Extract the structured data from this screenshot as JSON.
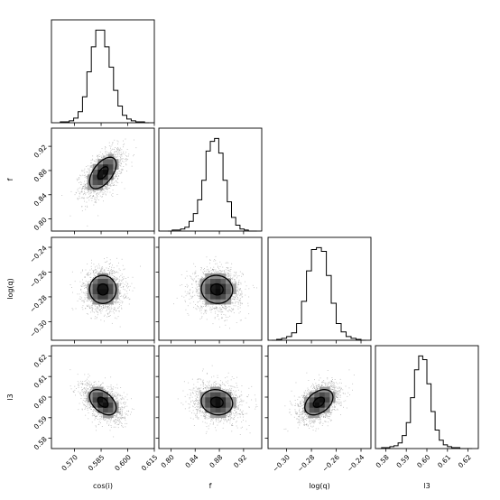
{
  "chart_data": {
    "type": "corner",
    "title": "",
    "parameters": [
      {
        "label": "cos(i)",
        "range": [
          0.557,
          0.615
        ],
        "ticks": [
          0.57,
          0.585,
          0.6,
          0.615
        ],
        "tick_labels": [
          "0.570",
          "0.585",
          "0.600",
          "0.615"
        ]
      },
      {
        "label": "f",
        "range": [
          0.78,
          0.95
        ],
        "ticks": [
          0.8,
          0.84,
          0.88,
          0.92
        ],
        "tick_labels": [
          "0.80",
          "0.84",
          "0.88",
          "0.92"
        ]
      },
      {
        "label": "log(q)",
        "range": [
          -0.315,
          -0.232
        ],
        "ticks": [
          -0.3,
          -0.28,
          -0.26,
          -0.24
        ],
        "tick_labels": [
          "−0.30",
          "−0.28",
          "−0.26",
          "−0.24"
        ]
      },
      {
        "label": "l3",
        "range": [
          0.575,
          0.625
        ],
        "ticks": [
          0.58,
          0.59,
          0.6,
          0.61,
          0.62
        ],
        "tick_labels": [
          "0.58",
          "0.59",
          "0.60",
          "0.61",
          "0.62"
        ]
      }
    ],
    "histograms": [
      {
        "parameter": "cos(i)",
        "bin_edges": [
          0.562,
          0.5645,
          0.567,
          0.5695,
          0.572,
          0.5745,
          0.577,
          0.5795,
          0.582,
          0.5845,
          0.587,
          0.5895,
          0.592,
          0.5945,
          0.597,
          0.5995,
          0.602,
          0.6045,
          0.607,
          0.6095,
          0.612
        ],
        "counts": [
          1,
          1,
          2,
          5,
          12,
          28,
          55,
          82,
          100,
          100,
          82,
          60,
          35,
          18,
          8,
          4,
          2,
          1,
          1,
          0
        ]
      },
      {
        "parameter": "f",
        "bin_edges": [
          0.795,
          0.802,
          0.809,
          0.816,
          0.823,
          0.83,
          0.837,
          0.844,
          0.851,
          0.858,
          0.865,
          0.872,
          0.879,
          0.886,
          0.893,
          0.9,
          0.907,
          0.914,
          0.921,
          0.928,
          0.935,
          0.942
        ],
        "counts": [
          0,
          1,
          1,
          2,
          4,
          10,
          18,
          32,
          52,
          82,
          92,
          95,
          80,
          52,
          30,
          14,
          6,
          2,
          1,
          0,
          0
        ]
      },
      {
        "parameter": "log(q)",
        "bin_edges": [
          -0.312,
          -0.308,
          -0.304,
          -0.3,
          -0.296,
          -0.292,
          -0.288,
          -0.284,
          -0.28,
          -0.276,
          -0.272,
          -0.268,
          -0.264,
          -0.26,
          -0.256,
          -0.252,
          -0.248,
          -0.244,
          -0.24,
          -0.236
        ],
        "counts": [
          0,
          1,
          2,
          4,
          8,
          18,
          42,
          75,
          98,
          100,
          96,
          70,
          40,
          18,
          9,
          4,
          2,
          1,
          0
        ]
      },
      {
        "parameter": "l3",
        "bin_edges": [
          0.576,
          0.578,
          0.58,
          0.582,
          0.584,
          0.586,
          0.588,
          0.59,
          0.592,
          0.594,
          0.596,
          0.598,
          0.6,
          0.602,
          0.604,
          0.606,
          0.608,
          0.61,
          0.612,
          0.614,
          0.616,
          0.618,
          0.62,
          0.622
        ],
        "counts": [
          0,
          1,
          1,
          2,
          3,
          6,
          14,
          28,
          55,
          85,
          100,
          96,
          70,
          40,
          20,
          9,
          4,
          2,
          1,
          1,
          0,
          0,
          0
        ]
      }
    ],
    "joint_distributions": [
      {
        "x": "cos(i)",
        "y": "f",
        "center": [
          0.586,
          0.876
        ],
        "sigma": [
          0.0055,
          0.019
        ],
        "correlation": 0.55
      },
      {
        "x": "cos(i)",
        "y": "log(q)",
        "center": [
          0.586,
          -0.274
        ],
        "sigma": [
          0.0055,
          0.0083
        ],
        "correlation": 0.0
      },
      {
        "x": "f",
        "y": "log(q)",
        "center": [
          0.876,
          -0.274
        ],
        "sigma": [
          0.019,
          0.0083
        ],
        "correlation": -0.05
      },
      {
        "x": "cos(i)",
        "y": "l3",
        "center": [
          0.586,
          0.5975
        ],
        "sigma": [
          0.0055,
          0.0045
        ],
        "correlation": -0.45
      },
      {
        "x": "f",
        "y": "l3",
        "center": [
          0.876,
          0.5975
        ],
        "sigma": [
          0.019,
          0.0045
        ],
        "correlation": -0.1
      },
      {
        "x": "log(q)",
        "y": "l3",
        "center": [
          -0.274,
          0.5975
        ],
        "sigma": [
          0.0083,
          0.0045
        ],
        "correlation": 0.4
      }
    ],
    "contour_levels_sigma": [
      1,
      2
    ],
    "grid": false,
    "legend": "none"
  }
}
